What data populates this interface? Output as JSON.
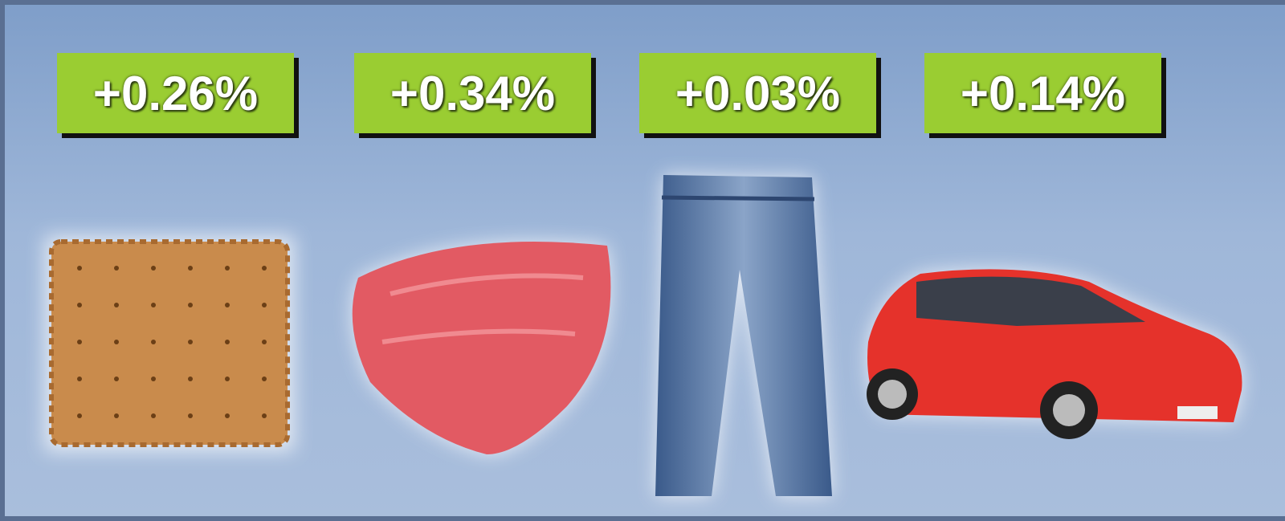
{
  "labels": [
    "+0.26%",
    "+0.34%",
    "+0.03%",
    "+0.14%"
  ]
}
